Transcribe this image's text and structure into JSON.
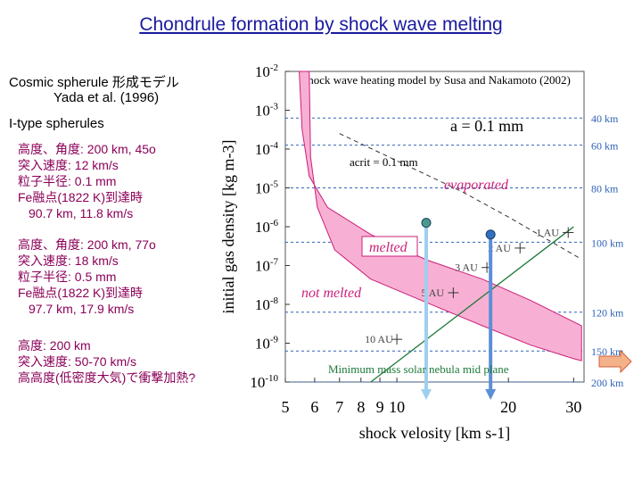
{
  "page": {
    "title": "Chondrule formation by shock wave melting",
    "subtitle_line1": "Cosmic spherule 形成モデル",
    "subtitle_line2": "Yada et al. (1996)",
    "section": "I-type spherules"
  },
  "cases": [
    {
      "lines": [
        "高度、角度: 200 km, 45o",
        "突入速度: 12 km/s",
        "粒子半径: 0.1 mm",
        "Fe融点(1822 K)到達時",
        "90.7 km, 11.8 km/s"
      ]
    },
    {
      "lines": [
        "高度、角度: 200 km, 77o",
        "突入速度: 18 km/s",
        "粒子半径: 0.5 mm",
        "Fe融点(1822 K)到達時",
        "97.7 km, 17.9 km/s"
      ]
    },
    {
      "lines": [
        "高度: 200 km",
        "突入速度: 50-70 km/s",
        "高高度(低密度大気)で衝撃加熱?"
      ]
    }
  ],
  "chart_data": {
    "type": "line",
    "title": "Shock wave heating model by Susa and Nakamoto (2002)",
    "xlabel": "shock velosity [km s-1]",
    "ylabel": "initial gas density [kg m-3]",
    "xscale": "log",
    "yscale": "log",
    "xlim": [
      5,
      32
    ],
    "ylim": [
      1e-10,
      0.01
    ],
    "x_ticks": [
      "5",
      "6",
      "7",
      "8",
      "9",
      "10",
      "20",
      "30"
    ],
    "x_tick_values": [
      5,
      6,
      7,
      8,
      9,
      10,
      20,
      30
    ],
    "y_ticks": [
      "10-2",
      "10-3",
      "10-4",
      "10-5",
      "10-6",
      "10-7",
      "10-8",
      "10-9",
      "10-10"
    ],
    "y_tick_exponents": [
      -2,
      -3,
      -4,
      -5,
      -6,
      -7,
      -8,
      -9,
      -10
    ],
    "annotations": {
      "particle_size": "a = 0.1 mm",
      "critical_size": "acrit = 0.1 mm",
      "evaporated": "evaporated",
      "melted": "melted",
      "not_melted": "not melted",
      "nebula_line": "Minimum mass solar nebula mid plane"
    },
    "altitude_lines": [
      {
        "label": "40 km",
        "density_exp": -3.2
      },
      {
        "label": "60 km",
        "density_exp": -3.9
      },
      {
        "label": "80 km",
        "density_exp": -5.0
      },
      {
        "label": "100 km",
        "density_exp": -6.4
      },
      {
        "label": "120 km",
        "density_exp": -8.2
      },
      {
        "label": "150 km",
        "density_exp": -9.2
      },
      {
        "label": "200 km",
        "density_exp": -10.0
      }
    ],
    "nebula_line": [
      {
        "x": 8.5,
        "y_exp": -10.0
      },
      {
        "x": 30,
        "y_exp": -6.0
      }
    ],
    "au_marks": [
      {
        "label": "1 AU",
        "x": 29.0,
        "y_exp": -6.15
      },
      {
        "label": "2 AU",
        "x": 21.5,
        "y_exp": -6.55
      },
      {
        "label": "3 AU",
        "x": 17.5,
        "y_exp": -7.05
      },
      {
        "label": "5 AU",
        "x": 14.2,
        "y_exp": -7.7
      },
      {
        "label": "10 AU",
        "x": 10.0,
        "y_exp": -8.9
      }
    ],
    "dashed_curve": [
      {
        "x": 7.0,
        "y_exp": -3.6
      },
      {
        "x": 10.0,
        "y_exp": -4.3
      },
      {
        "x": 15.0,
        "y_exp": -5.1
      },
      {
        "x": 20.0,
        "y_exp": -5.75
      },
      {
        "x": 31.0,
        "y_exp": -6.8
      }
    ],
    "melt_band_upper": [
      {
        "x": 5.45,
        "y_exp": -2.0
      },
      {
        "x": 5.55,
        "y_exp": -3.5
      },
      {
        "x": 5.8,
        "y_exp": -4.7
      },
      {
        "x": 6.5,
        "y_exp": -5.5
      },
      {
        "x": 8.5,
        "y_exp": -6.2
      },
      {
        "x": 12.0,
        "y_exp": -6.85
      },
      {
        "x": 17.0,
        "y_exp": -7.35
      },
      {
        "x": 23.0,
        "y_exp": -7.9
      },
      {
        "x": 30.0,
        "y_exp": -8.45
      },
      {
        "x": 31.5,
        "y_exp": -8.55
      }
    ],
    "melt_band_lower": [
      {
        "x": 31.5,
        "y_exp": -9.45
      },
      {
        "x": 30.0,
        "y_exp": -9.4
      },
      {
        "x": 23.0,
        "y_exp": -9.05
      },
      {
        "x": 17.0,
        "y_exp": -8.55
      },
      {
        "x": 12.0,
        "y_exp": -7.95
      },
      {
        "x": 8.5,
        "y_exp": -7.35
      },
      {
        "x": 6.8,
        "y_exp": -6.6
      },
      {
        "x": 6.1,
        "y_exp": -5.5
      },
      {
        "x": 5.85,
        "y_exp": -4.2
      },
      {
        "x": 5.8,
        "y_exp": -2.0
      }
    ],
    "trajectories": [
      {
        "x": 12.0,
        "y_top_exp": -5.9,
        "y_bottom_exp": -10.0,
        "color": "#9fcfee"
      },
      {
        "x": 17.9,
        "y_top_exp": -6.2,
        "y_bottom_exp": -10.0,
        "color": "#5b8fd6"
      }
    ],
    "colors": {
      "band_fill": "#f7b0d3",
      "band_edge": "#cc1f7a",
      "melted_text": "#cc1f7a",
      "altitude": "#2f63b8",
      "nebula": "#1e7a3a",
      "au_text": "#444444",
      "arrow_fill": "#f4b28a",
      "arrow_edge": "#d2603a"
    }
  }
}
